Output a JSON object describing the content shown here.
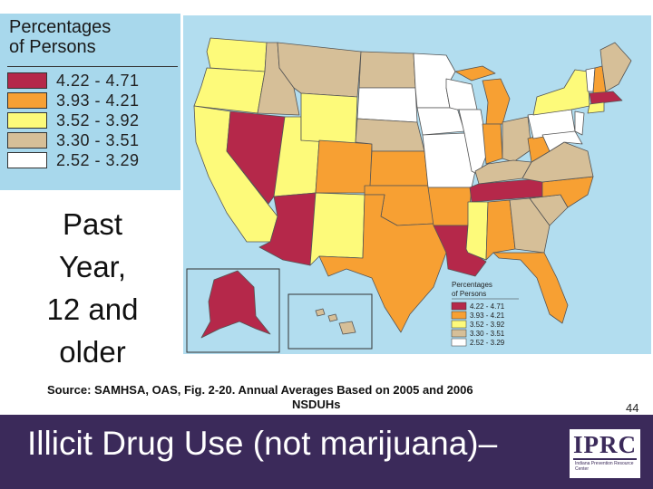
{
  "legend": {
    "title_lines": [
      "Percentages",
      "of Persons"
    ],
    "items": [
      {
        "range": "4.22 - 4.71",
        "color": "#b5284a"
      },
      {
        "range": "3.93 - 4.21",
        "color": "#f7a033"
      },
      {
        "range": "3.52 - 3.92",
        "color": "#fdfa7a"
      },
      {
        "range": "3.30 - 3.51",
        "color": "#d6bf98"
      },
      {
        "range": "2.52 - 3.29",
        "color": "#ffffff"
      }
    ]
  },
  "map": {
    "background": "#b2ddef",
    "inset_legend": {
      "title_lines": [
        "Percentages",
        "of Persons"
      ],
      "items": [
        "4.22 - 4.71",
        "3.93 - 4.21",
        "3.52 - 3.92",
        "3.30 - 3.51",
        "2.52 - 3.29"
      ]
    }
  },
  "caption": {
    "lines": [
      "Past",
      "Year,",
      "12 and",
      "older"
    ]
  },
  "source": {
    "line1": "Source:  SAMHSA, OAS, Fig. 2-20.   Annual Averages Based on 2005 and 2006",
    "line2": "NSDUHs"
  },
  "page_number": "44",
  "title": "Illicit Drug Use (not marijuana)–",
  "logo": {
    "letters": "IPRC",
    "subtitle": "Indiana Prevention Resource Center"
  }
}
